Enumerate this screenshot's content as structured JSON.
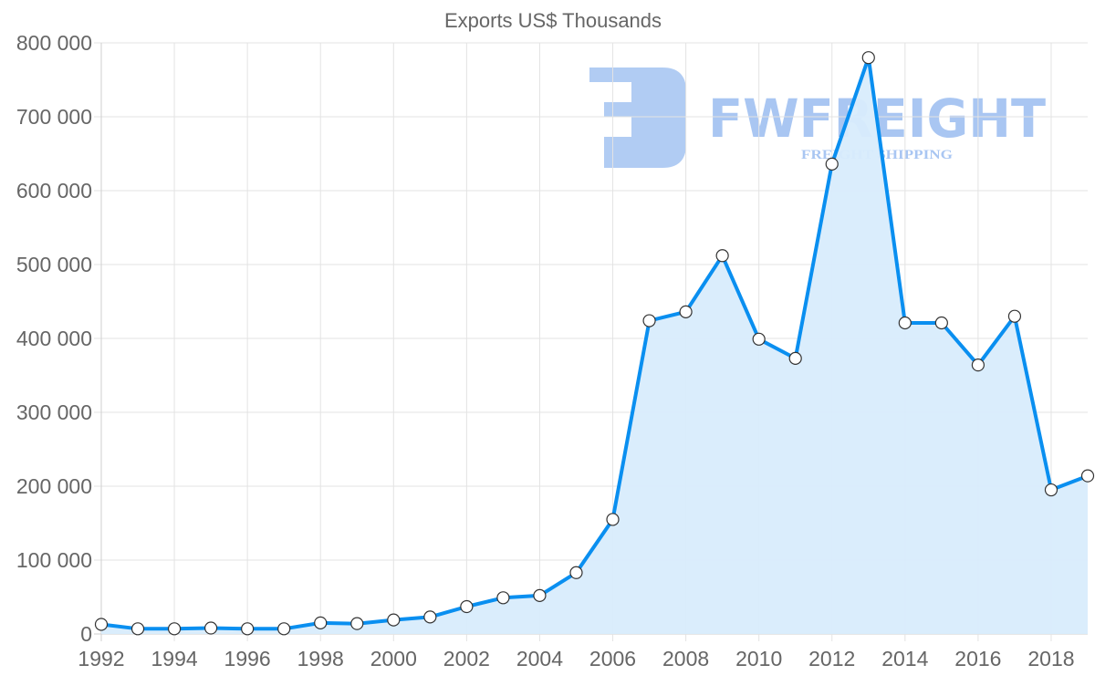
{
  "chart_data": {
    "type": "area",
    "title": "Exports US$ Thousands",
    "xlabel": "",
    "ylabel": "",
    "x": [
      1992,
      1993,
      1994,
      1995,
      1996,
      1997,
      1998,
      1999,
      2000,
      2001,
      2002,
      2003,
      2004,
      2005,
      2006,
      2007,
      2008,
      2009,
      2010,
      2011,
      2012,
      2013,
      2014,
      2015,
      2016,
      2017,
      2018,
      2019
    ],
    "series": [
      {
        "name": "Exports US$ Thousands",
        "values": [
          13000,
          7000,
          7000,
          8000,
          7000,
          7000,
          15000,
          14000,
          19000,
          23000,
          37000,
          49000,
          52000,
          83000,
          155000,
          424000,
          436000,
          512000,
          399000,
          373000,
          636000,
          780000,
          421000,
          421000,
          364000,
          430000,
          195000,
          214000
        ]
      }
    ],
    "ylim": [
      0,
      800000
    ],
    "yticks": [
      0,
      100000,
      200000,
      300000,
      400000,
      500000,
      600000,
      700000,
      800000
    ],
    "ytick_labels": [
      "0",
      "100 000",
      "200 000",
      "300 000",
      "400 000",
      "500 000",
      "600 000",
      "700 000",
      "800 000"
    ],
    "xtick_labels": [
      "1992",
      "1994",
      "1996",
      "1998",
      "2000",
      "2002",
      "2004",
      "2006",
      "2008",
      "2010",
      "2012",
      "2014",
      "2016",
      "2018"
    ],
    "grid": true,
    "legend": "none",
    "colors": {
      "line": "#0a8ff0",
      "fill": "#d8ecfc",
      "point_fill": "#ffffff",
      "point_stroke": "#333333"
    }
  },
  "watermark": {
    "brand": "FWFREIGHT",
    "tagline": "FREIGHT SHIPPING",
    "color": "#a9c6f2"
  }
}
